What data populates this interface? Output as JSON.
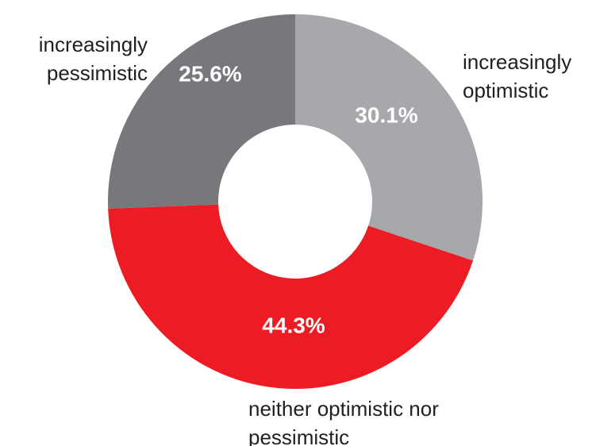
{
  "chart_data": {
    "type": "donut",
    "categories": [
      "increasingly optimistic",
      "neither optimistic nor pessimistic",
      "increasingly pessimistic"
    ],
    "values": [
      30.1,
      44.3,
      25.6
    ],
    "value_labels": [
      "30.1%",
      "44.3%",
      "25.6%"
    ],
    "colors": [
      "#a7a8ab",
      "#ed1c24",
      "#77787b"
    ]
  }
}
